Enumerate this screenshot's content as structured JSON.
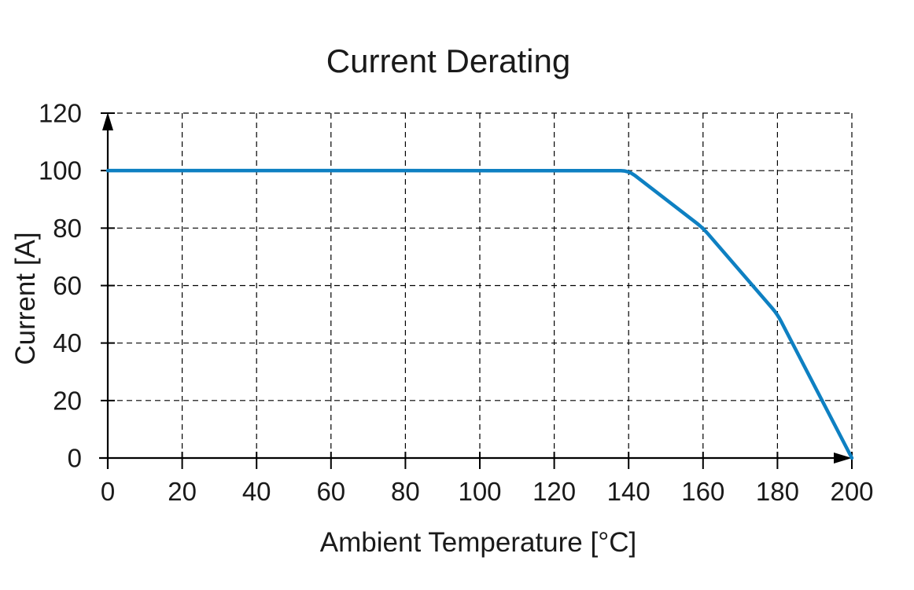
{
  "chart_data": {
    "type": "line",
    "title": "Current Derating",
    "xlabel": "Ambient Temperature [°C]",
    "ylabel": "Current [A]",
    "xlim": [
      0,
      200
    ],
    "ylim": [
      0,
      120
    ],
    "x_ticks": [
      0,
      20,
      40,
      60,
      80,
      100,
      120,
      140,
      160,
      180,
      200
    ],
    "y_ticks": [
      0,
      20,
      40,
      60,
      80,
      100,
      120
    ],
    "grid": "dashed",
    "legend": "none",
    "axis_arrows": true,
    "colors": {
      "line": "#0e80c2",
      "grid": "#000000",
      "axis": "#000000",
      "text": "#1a1a1a"
    },
    "series": [
      {
        "name": "derating-curve",
        "color": "#0e80c2",
        "points": [
          [
            0,
            100
          ],
          [
            140,
            100
          ],
          [
            160,
            80
          ],
          [
            180,
            50
          ],
          [
            200,
            0
          ]
        ]
      }
    ]
  }
}
